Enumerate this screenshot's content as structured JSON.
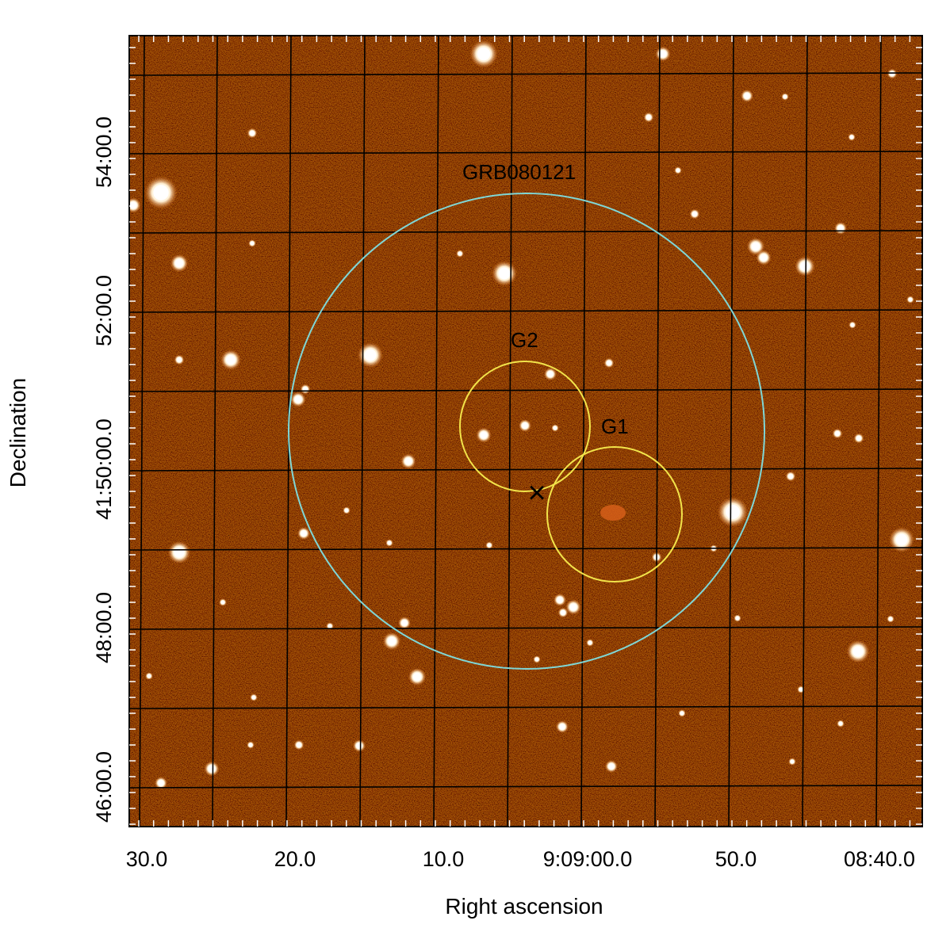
{
  "figure": {
    "xlabel": "Right ascension",
    "ylabel": "Declination",
    "x_ticks": [
      "30.0",
      "20.0",
      "10.0",
      "9:09:00.0",
      "50.0",
      "08:40.0"
    ],
    "y_ticks": [
      "46:00.0",
      "48:00.0",
      "41:50:00.0",
      "52:00.0",
      "54:00.0"
    ],
    "image_colors": {
      "background": "#8a3406",
      "star": "#ffffff",
      "grid": "#000000"
    }
  },
  "annotations": {
    "grb": {
      "label": "GRB080121",
      "color": "#7fd6d6"
    },
    "g2": {
      "label": "G2",
      "color": "#f2e44a"
    },
    "g1": {
      "label": "G1",
      "color": "#f2e44a"
    },
    "marker": {
      "symbol": "×",
      "color": "#6ddc3a"
    }
  }
}
